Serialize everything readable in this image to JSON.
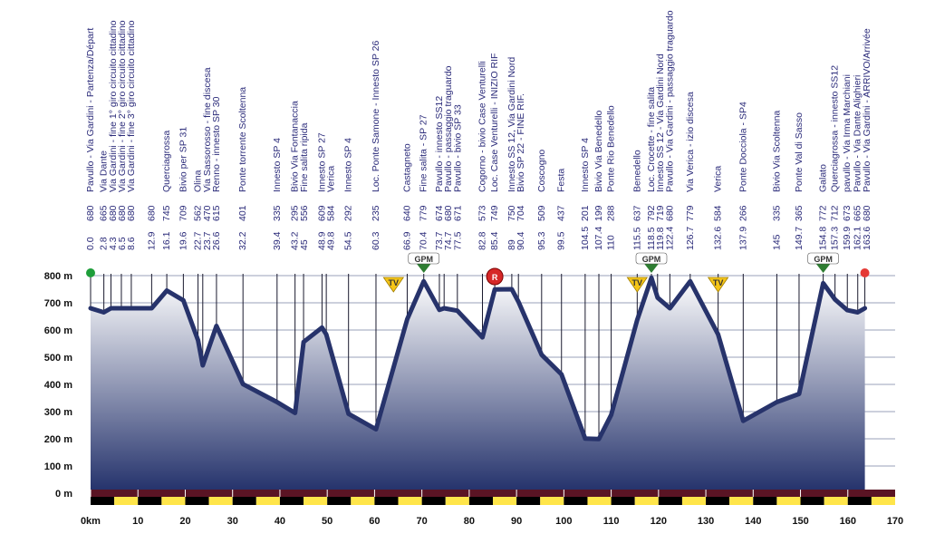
{
  "chart_data": {
    "type": "area",
    "title": "",
    "xlabel": "",
    "ylabel": "",
    "x_unit": "km",
    "y_unit": "m",
    "xlim": [
      0,
      170
    ],
    "ylim": [
      0,
      800
    ],
    "x_ticks": [
      0,
      10,
      20,
      30,
      40,
      50,
      60,
      70,
      80,
      90,
      100,
      110,
      120,
      130,
      140,
      150,
      160,
      170
    ],
    "y_ticks": [
      0,
      100,
      200,
      300,
      400,
      500,
      600,
      700,
      800
    ],
    "y_tick_labels": [
      "0 m",
      "100 m",
      "200 m",
      "300 m",
      "400 m",
      "500 m",
      "600 m",
      "700 m",
      "800 m"
    ],
    "x_axis_label": "km",
    "colors": {
      "profile_line": "#27336b",
      "fill_top": "#ffffff",
      "fill_bottom": "#22306a",
      "bar_top": "#5a1424",
      "bar_black": "#000000",
      "bar_yellow": "#ffe54a",
      "gpm_badge": "#2e7d32",
      "tv_badge": "#f5c518",
      "r_badge": "#d62828",
      "start_dot": "#1e9e3a",
      "finish_dot": "#e53935"
    },
    "waypoints": [
      {
        "km": 0.0,
        "alt": 680,
        "name": "Pavullo - Via Gardini - Partenza/Départ"
      },
      {
        "km": 2.8,
        "alt": 665,
        "name": "Via Dante"
      },
      {
        "km": 4.3,
        "alt": 680,
        "name": "Via Gardini - fine 1° giro circuito cittadino"
      },
      {
        "km": 6.5,
        "alt": 680,
        "name": "Via Gardini - fine 2° giro circuito cittadino"
      },
      {
        "km": 8.6,
        "alt": 680,
        "name": "Via Gardini - fine 3° giro circuito cittadino"
      },
      {
        "km": 12.9,
        "alt": 680,
        "name": ""
      },
      {
        "km": 16.1,
        "alt": 745,
        "name": "Querciagrossa"
      },
      {
        "km": 19.6,
        "alt": 709,
        "name": "Bivio per SP 31"
      },
      {
        "km": 22.7,
        "alt": 562,
        "name": "Olina"
      },
      {
        "km": 23.7,
        "alt": 470,
        "name": "Via Sassorosso - fine discesa"
      },
      {
        "km": 26.6,
        "alt": 615,
        "name": "Renno - innesto SP 30"
      },
      {
        "km": 32.2,
        "alt": 401,
        "name": "Ponte torrente Scoltenna"
      },
      {
        "km": 39.4,
        "alt": 335,
        "name": "Innesto SP 4"
      },
      {
        "km": 43.2,
        "alt": 295,
        "name": "Bivio Via Fontanaccia"
      },
      {
        "km": 45.0,
        "alt": 556,
        "name": "Fine salita ripida"
      },
      {
        "km": 48.9,
        "alt": 609,
        "name": "Innesto SP 27"
      },
      {
        "km": 49.8,
        "alt": 584,
        "name": "Verica"
      },
      {
        "km": 54.5,
        "alt": 292,
        "name": "Innesto SP 4"
      },
      {
        "km": 60.3,
        "alt": 235,
        "name": "Loc. Ponte Samone - Innesto SP 26"
      },
      {
        "km": 66.9,
        "alt": 640,
        "name": "Castagneto"
      },
      {
        "km": 70.4,
        "alt": 779,
        "name": "Fine salita - SP 27"
      },
      {
        "km": 73.7,
        "alt": 674,
        "name": "Pavullo - innesto SS12"
      },
      {
        "km": 74.7,
        "alt": 680,
        "name": "Pavullo - passaggio traguardo"
      },
      {
        "km": 77.5,
        "alt": 671,
        "name": "Pavullo - bivio SP 33"
      },
      {
        "km": 82.8,
        "alt": 573,
        "name": "Cogorno - bivio Case Venturelli"
      },
      {
        "km": 85.4,
        "alt": 749,
        "name": "Loc. Case Venturelli - INIZIO RIF"
      },
      {
        "km": 89.0,
        "alt": 750,
        "name": "Innesto SS 12, Via Gardini Nord"
      },
      {
        "km": 90.4,
        "alt": 704,
        "name": "Bivio SP 22 - FINE RIF."
      },
      {
        "km": 95.3,
        "alt": 509,
        "name": "Coscogno"
      },
      {
        "km": 99.5,
        "alt": 437,
        "name": "Festa"
      },
      {
        "km": 104.5,
        "alt": 201,
        "name": "Innesto SP 4"
      },
      {
        "km": 107.4,
        "alt": 199,
        "name": "Bivio Via Benedello"
      },
      {
        "km": 110.0,
        "alt": 288,
        "name": "Ponte Rio Benedello"
      },
      {
        "km": 115.5,
        "alt": 637,
        "name": "Benedello"
      },
      {
        "km": 118.5,
        "alt": 792,
        "name": "Loc. Crocette - fine salita"
      },
      {
        "km": 119.8,
        "alt": 719,
        "name": "Innesto SS 12 - Via Gardini Nord"
      },
      {
        "km": 122.4,
        "alt": 680,
        "name": "Pavullo - Via Gardini - passaggio traguardo"
      },
      {
        "km": 126.7,
        "alt": 779,
        "name": "Via Verica - izio discesa"
      },
      {
        "km": 132.6,
        "alt": 584,
        "name": "Verica"
      },
      {
        "km": 137.9,
        "alt": 266,
        "name": "Ponte Docciola - SP4"
      },
      {
        "km": 145.0,
        "alt": 335,
        "name": "Bivio Via Scoltenna"
      },
      {
        "km": 149.7,
        "alt": 365,
        "name": "Ponte Val di Sasso"
      },
      {
        "km": 154.8,
        "alt": 772,
        "name": "Galato"
      },
      {
        "km": 157.3,
        "alt": 712,
        "name": "Querciagrossa - innesto SS12"
      },
      {
        "km": 159.9,
        "alt": 673,
        "name": "pavullo - Via Irma Marchiani"
      },
      {
        "km": 162.1,
        "alt": 665,
        "name": "Pavullo - Via Dante Alighieri"
      },
      {
        "km": 163.6,
        "alt": 680,
        "name": "Pavullo - Via Gardini - ARRIVO/Arrivée"
      }
    ],
    "badges": [
      {
        "type": "TV",
        "km": 64,
        "label": "TV"
      },
      {
        "type": "GPM",
        "km": 70.4,
        "label": "GPM"
      },
      {
        "type": "R",
        "km": 85.4,
        "label": "R"
      },
      {
        "type": "TV",
        "km": 115.5,
        "label": "TV"
      },
      {
        "type": "GPM",
        "km": 118.5,
        "label": "GPM"
      },
      {
        "type": "TV",
        "km": 132.6,
        "label": "TV"
      },
      {
        "type": "GPM",
        "km": 154.8,
        "label": "GPM"
      }
    ]
  }
}
